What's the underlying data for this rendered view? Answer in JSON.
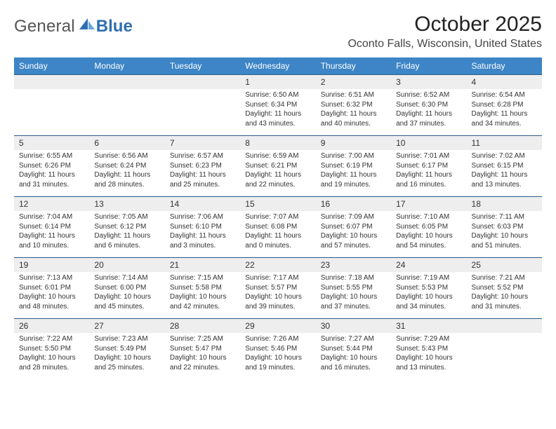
{
  "brand": {
    "general": "General",
    "blue": "Blue"
  },
  "title": {
    "month": "October 2025",
    "location": "Oconto Falls, Wisconsin, United States"
  },
  "style": {
    "header_bg": "#3d85c6",
    "row_gray": "#eeeeee",
    "divider": "#2d5a8a",
    "page_bg": "#ffffff",
    "text_color": "#222222",
    "header_fontsize": 12,
    "daynum_fontsize": 12,
    "detail_fontsize": 10,
    "title_fontsize": 30,
    "location_fontsize": 16
  },
  "days_of_week": [
    "Sunday",
    "Monday",
    "Tuesday",
    "Wednesday",
    "Thursday",
    "Friday",
    "Saturday"
  ],
  "weeks": [
    [
      null,
      null,
      null,
      {
        "n": "1",
        "sr": "Sunrise: 6:50 AM",
        "ss": "Sunset: 6:34 PM",
        "d1": "Daylight: 11 hours",
        "d2": "and 43 minutes."
      },
      {
        "n": "2",
        "sr": "Sunrise: 6:51 AM",
        "ss": "Sunset: 6:32 PM",
        "d1": "Daylight: 11 hours",
        "d2": "and 40 minutes."
      },
      {
        "n": "3",
        "sr": "Sunrise: 6:52 AM",
        "ss": "Sunset: 6:30 PM",
        "d1": "Daylight: 11 hours",
        "d2": "and 37 minutes."
      },
      {
        "n": "4",
        "sr": "Sunrise: 6:54 AM",
        "ss": "Sunset: 6:28 PM",
        "d1": "Daylight: 11 hours",
        "d2": "and 34 minutes."
      }
    ],
    [
      {
        "n": "5",
        "sr": "Sunrise: 6:55 AM",
        "ss": "Sunset: 6:26 PM",
        "d1": "Daylight: 11 hours",
        "d2": "and 31 minutes."
      },
      {
        "n": "6",
        "sr": "Sunrise: 6:56 AM",
        "ss": "Sunset: 6:24 PM",
        "d1": "Daylight: 11 hours",
        "d2": "and 28 minutes."
      },
      {
        "n": "7",
        "sr": "Sunrise: 6:57 AM",
        "ss": "Sunset: 6:23 PM",
        "d1": "Daylight: 11 hours",
        "d2": "and 25 minutes."
      },
      {
        "n": "8",
        "sr": "Sunrise: 6:59 AM",
        "ss": "Sunset: 6:21 PM",
        "d1": "Daylight: 11 hours",
        "d2": "and 22 minutes."
      },
      {
        "n": "9",
        "sr": "Sunrise: 7:00 AM",
        "ss": "Sunset: 6:19 PM",
        "d1": "Daylight: 11 hours",
        "d2": "and 19 minutes."
      },
      {
        "n": "10",
        "sr": "Sunrise: 7:01 AM",
        "ss": "Sunset: 6:17 PM",
        "d1": "Daylight: 11 hours",
        "d2": "and 16 minutes."
      },
      {
        "n": "11",
        "sr": "Sunrise: 7:02 AM",
        "ss": "Sunset: 6:15 PM",
        "d1": "Daylight: 11 hours",
        "d2": "and 13 minutes."
      }
    ],
    [
      {
        "n": "12",
        "sr": "Sunrise: 7:04 AM",
        "ss": "Sunset: 6:14 PM",
        "d1": "Daylight: 11 hours",
        "d2": "and 10 minutes."
      },
      {
        "n": "13",
        "sr": "Sunrise: 7:05 AM",
        "ss": "Sunset: 6:12 PM",
        "d1": "Daylight: 11 hours",
        "d2": "and 6 minutes."
      },
      {
        "n": "14",
        "sr": "Sunrise: 7:06 AM",
        "ss": "Sunset: 6:10 PM",
        "d1": "Daylight: 11 hours",
        "d2": "and 3 minutes."
      },
      {
        "n": "15",
        "sr": "Sunrise: 7:07 AM",
        "ss": "Sunset: 6:08 PM",
        "d1": "Daylight: 11 hours",
        "d2": "and 0 minutes."
      },
      {
        "n": "16",
        "sr": "Sunrise: 7:09 AM",
        "ss": "Sunset: 6:07 PM",
        "d1": "Daylight: 10 hours",
        "d2": "and 57 minutes."
      },
      {
        "n": "17",
        "sr": "Sunrise: 7:10 AM",
        "ss": "Sunset: 6:05 PM",
        "d1": "Daylight: 10 hours",
        "d2": "and 54 minutes."
      },
      {
        "n": "18",
        "sr": "Sunrise: 7:11 AM",
        "ss": "Sunset: 6:03 PM",
        "d1": "Daylight: 10 hours",
        "d2": "and 51 minutes."
      }
    ],
    [
      {
        "n": "19",
        "sr": "Sunrise: 7:13 AM",
        "ss": "Sunset: 6:01 PM",
        "d1": "Daylight: 10 hours",
        "d2": "and 48 minutes."
      },
      {
        "n": "20",
        "sr": "Sunrise: 7:14 AM",
        "ss": "Sunset: 6:00 PM",
        "d1": "Daylight: 10 hours",
        "d2": "and 45 minutes."
      },
      {
        "n": "21",
        "sr": "Sunrise: 7:15 AM",
        "ss": "Sunset: 5:58 PM",
        "d1": "Daylight: 10 hours",
        "d2": "and 42 minutes."
      },
      {
        "n": "22",
        "sr": "Sunrise: 7:17 AM",
        "ss": "Sunset: 5:57 PM",
        "d1": "Daylight: 10 hours",
        "d2": "and 39 minutes."
      },
      {
        "n": "23",
        "sr": "Sunrise: 7:18 AM",
        "ss": "Sunset: 5:55 PM",
        "d1": "Daylight: 10 hours",
        "d2": "and 37 minutes."
      },
      {
        "n": "24",
        "sr": "Sunrise: 7:19 AM",
        "ss": "Sunset: 5:53 PM",
        "d1": "Daylight: 10 hours",
        "d2": "and 34 minutes."
      },
      {
        "n": "25",
        "sr": "Sunrise: 7:21 AM",
        "ss": "Sunset: 5:52 PM",
        "d1": "Daylight: 10 hours",
        "d2": "and 31 minutes."
      }
    ],
    [
      {
        "n": "26",
        "sr": "Sunrise: 7:22 AM",
        "ss": "Sunset: 5:50 PM",
        "d1": "Daylight: 10 hours",
        "d2": "and 28 minutes."
      },
      {
        "n": "27",
        "sr": "Sunrise: 7:23 AM",
        "ss": "Sunset: 5:49 PM",
        "d1": "Daylight: 10 hours",
        "d2": "and 25 minutes."
      },
      {
        "n": "28",
        "sr": "Sunrise: 7:25 AM",
        "ss": "Sunset: 5:47 PM",
        "d1": "Daylight: 10 hours",
        "d2": "and 22 minutes."
      },
      {
        "n": "29",
        "sr": "Sunrise: 7:26 AM",
        "ss": "Sunset: 5:46 PM",
        "d1": "Daylight: 10 hours",
        "d2": "and 19 minutes."
      },
      {
        "n": "30",
        "sr": "Sunrise: 7:27 AM",
        "ss": "Sunset: 5:44 PM",
        "d1": "Daylight: 10 hours",
        "d2": "and 16 minutes."
      },
      {
        "n": "31",
        "sr": "Sunrise: 7:29 AM",
        "ss": "Sunset: 5:43 PM",
        "d1": "Daylight: 10 hours",
        "d2": "and 13 minutes."
      },
      null
    ]
  ]
}
